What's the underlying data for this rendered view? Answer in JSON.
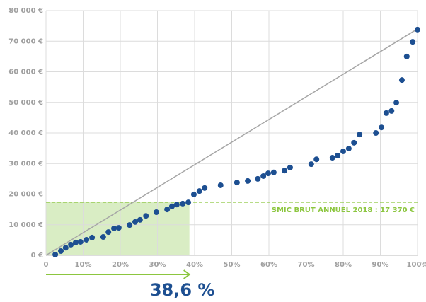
{
  "chart_data": {
    "type": "scatter",
    "color": "#1d4f91",
    "x": [
      2.5,
      4,
      5.3,
      6.7,
      8,
      9.3,
      10.9,
      12.4,
      15.4,
      16.8,
      18.3,
      19.6,
      22.5,
      24,
      25.3,
      26.9,
      29.7,
      32.6,
      33.9,
      35.2,
      36.8,
      38.3,
      39.8,
      41.3,
      42.7,
      47,
      51.4,
      54.3,
      57,
      58.5,
      59.8,
      61.3,
      64.2,
      65.7,
      71.4,
      72.8,
      77.1,
      78.5,
      80,
      81.5,
      82.9,
      84.4,
      88.8,
      90.3,
      91.6,
      93,
      94.3,
      95.8,
      97.1,
      98.7,
      100
    ],
    "values": [
      230,
      1400,
      2500,
      3500,
      4200,
      4400,
      5100,
      5800,
      6000,
      7600,
      8800,
      9000,
      9900,
      10900,
      11600,
      12900,
      14100,
      15000,
      16000,
      16600,
      16900,
      17300,
      19900,
      21000,
      22000,
      22900,
      23800,
      24300,
      25000,
      25900,
      26800,
      27100,
      27700,
      28700,
      29800,
      31400,
      31900,
      32600,
      34000,
      34900,
      36800,
      39500,
      40000,
      41800,
      46500,
      47200,
      49900,
      57300,
      65000,
      69800,
      73800
    ],
    "diagonal": {
      "x": [
        0,
        100
      ],
      "values": [
        0,
        74000
      ],
      "color": "#a6a6a6"
    },
    "threshold": {
      "value": 17370,
      "label": "SMIC BRUT ANNUEL 2018 : 17 370 €",
      "color": "#8cc63f"
    },
    "share": {
      "value": 38.6,
      "label": "38,6 %"
    },
    "xlim": [
      0,
      100
    ],
    "xticks": [
      0,
      {
        "value": 10,
        "label": "10%"
      },
      {
        "value": 20,
        "label": "20%"
      },
      {
        "value": 30,
        "label": "30%"
      },
      {
        "value": 40,
        "label": "40%"
      },
      {
        "value": 50,
        "label": "50%"
      },
      {
        "value": 60,
        "label": "60%"
      },
      {
        "value": 70,
        "label": "70%"
      },
      {
        "value": 80,
        "label": "80%"
      },
      {
        "value": 90,
        "label": "90%"
      },
      {
        "value": 100,
        "label": "100%"
      }
    ],
    "ylim": [
      0,
      80000
    ],
    "yticks": [
      {
        "value": 0,
        "label": "0 €"
      },
      {
        "value": 10000,
        "label": "10 000 €"
      },
      {
        "value": 20000,
        "label": "20 000 €"
      },
      {
        "value": 30000,
        "label": "30 000 €"
      },
      {
        "value": 40000,
        "label": "40 000 €"
      },
      {
        "value": 50000,
        "label": "50 000 €"
      },
      {
        "value": 60000,
        "label": "60 000 €"
      },
      {
        "value": 70000,
        "label": "70 000 €"
      },
      {
        "value": 80000,
        "label": "80 000 €"
      }
    ],
    "grid": true
  }
}
